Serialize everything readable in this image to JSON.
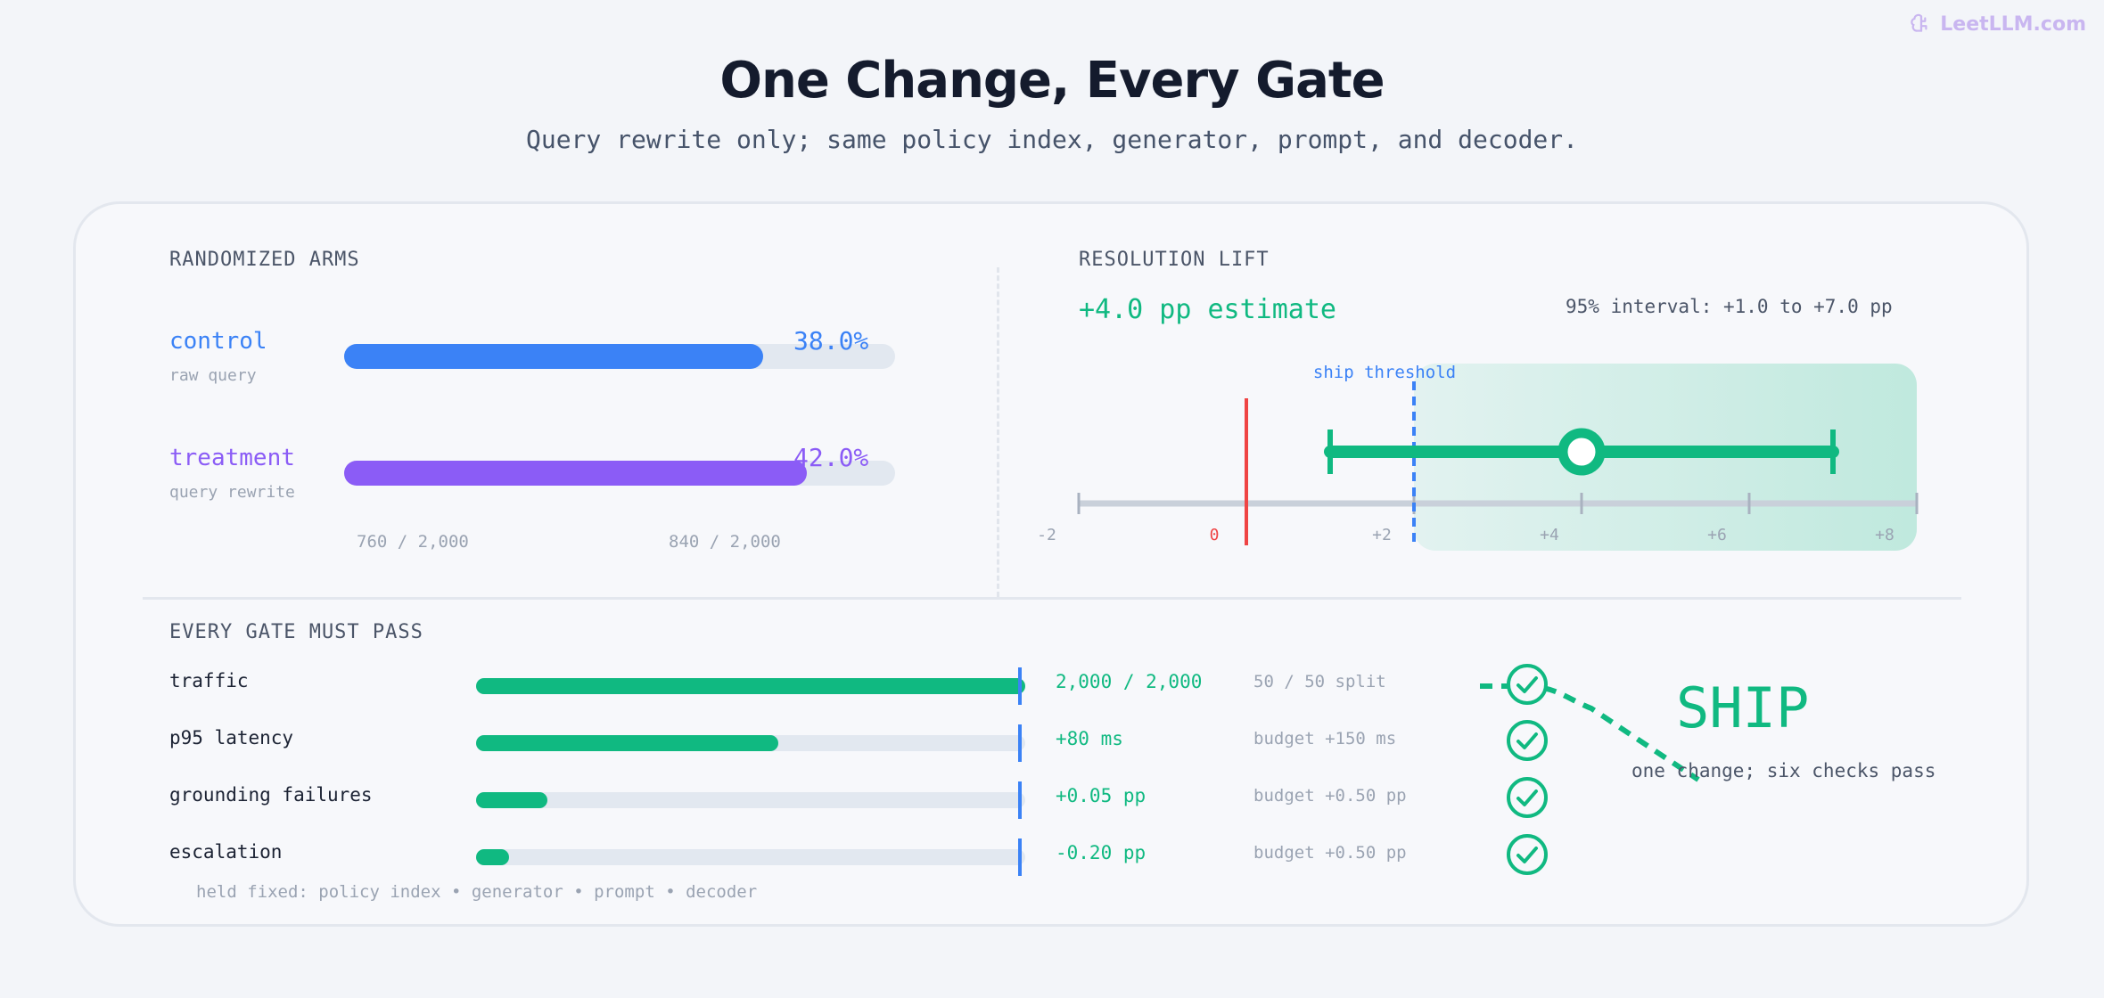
{
  "brand": {
    "name": "LeetLLM.com",
    "icon": "brain-icon"
  },
  "header": {
    "title": "One Change, Every Gate",
    "subtitle": "Query rewrite only; same policy index, generator, prompt, and decoder."
  },
  "colors": {
    "control": "#3b82f6",
    "treatment": "#8b5cf6",
    "pass": "#10b981",
    "zero_line": "#ef4444",
    "threshold": "#3b82f6",
    "track": "#e2e8f0"
  },
  "chart_data": [
    {
      "type": "bar",
      "title": "RANDOMIZED ARMS",
      "categories": [
        "control",
        "treatment"
      ],
      "subtitles": [
        "raw query",
        "query rewrite"
      ],
      "values": [
        38.0,
        42.0
      ],
      "value_labels": [
        "38.0%",
        "42.0%"
      ],
      "counts": [
        "760 / 2,000",
        "840 / 2,000"
      ],
      "xlim": [
        0,
        50
      ]
    },
    {
      "type": "scatter",
      "title": "RESOLUTION LIFT",
      "estimate_label": "+4.0 pp estimate",
      "interval_label": "95% interval: +1.0 to +7.0 pp",
      "estimate": 4.0,
      "interval": [
        1.0,
        7.0
      ],
      "threshold": 2.0,
      "threshold_label": "ship threshold",
      "xlim": [
        -2,
        8
      ],
      "ticks": [
        -2,
        0,
        2,
        4,
        6,
        8
      ],
      "tick_labels": [
        "-2",
        "0",
        "+2",
        "+4",
        "+6",
        "+8"
      ]
    }
  ],
  "gates": {
    "title": "EVERY GATE MUST PASS",
    "rows": [
      {
        "name": "traffic",
        "fill": 1.0,
        "value": "2,000 / 2,000",
        "budget": "50 / 50 split",
        "icon": "check-circle-icon"
      },
      {
        "name": "p95 latency",
        "fill": 0.55,
        "value": "+80 ms",
        "budget": "budget +150 ms",
        "icon": "check-circle-icon"
      },
      {
        "name": "grounding failures",
        "fill": 0.13,
        "value": "+0.05 pp",
        "budget": "budget +0.50 pp",
        "icon": "check-circle-icon"
      },
      {
        "name": "escalation",
        "fill": 0.06,
        "value": "-0.20 pp",
        "budget": "budget +0.50 pp",
        "icon": "check-circle-icon"
      }
    ],
    "held_fixed": "held fixed: policy index • generator • prompt • decoder"
  },
  "verdict": {
    "label": "SHIP",
    "note": "one change; six checks pass"
  }
}
